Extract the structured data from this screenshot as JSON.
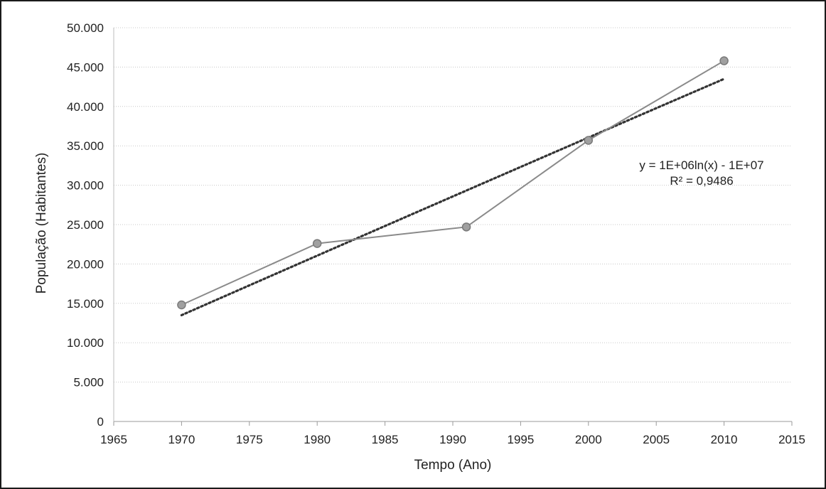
{
  "chart_data": {
    "type": "line",
    "title": "",
    "xlabel": "Tempo (Ano)",
    "ylabel": "População (Habitantes)",
    "xlim": [
      1965,
      2015
    ],
    "ylim": [
      0,
      50000
    ],
    "x_ticks": [
      1965,
      1970,
      1975,
      1980,
      1985,
      1990,
      1995,
      2000,
      2005,
      2010,
      2015
    ],
    "x_tick_labels": [
      "1965",
      "1970",
      "1975",
      "1980",
      "1985",
      "1990",
      "1995",
      "2000",
      "2005",
      "2010",
      "2015"
    ],
    "y_ticks": [
      0,
      5000,
      10000,
      15000,
      20000,
      25000,
      30000,
      35000,
      40000,
      45000,
      50000
    ],
    "y_tick_labels": [
      "0",
      "5.000",
      "10.000",
      "15.000",
      "20.000",
      "25.000",
      "30.000",
      "35.000",
      "40.000",
      "45.000",
      "50.000"
    ],
    "grid": true,
    "legend": "none",
    "series": [
      {
        "x": [
          1970,
          1980,
          1991,
          2000,
          2010
        ],
        "values": [
          14800,
          22600,
          24700,
          35700,
          45800
        ],
        "color": "#8a8a8a",
        "marker": "circle"
      }
    ],
    "trendline": {
      "kind": "logarithmic",
      "style": "dotted",
      "color": "#333333",
      "x_range": [
        1970,
        2010
      ],
      "y_start": 13500,
      "y_end": 43500,
      "equation_label": "y = 1E+06ln(x) - 1E+07",
      "r2_label": "R² = 0,9486"
    }
  }
}
